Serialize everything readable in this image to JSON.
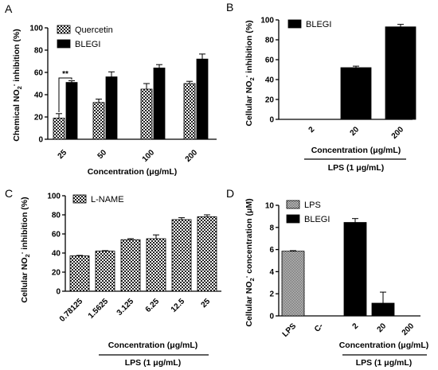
{
  "chart_data": [
    {
      "panel": "A",
      "type": "bar",
      "xlabel": "Concentration (μg/mL)",
      "ylabel": "Chemical NO₂⁻ inhibition (%)",
      "ylim": [
        0,
        100
      ],
      "yticks": [
        0,
        20,
        40,
        60,
        80,
        100
      ],
      "categories": [
        "25",
        "50",
        "100",
        "200"
      ],
      "series": [
        {
          "name": "Quercetin",
          "values": [
            19,
            33,
            45,
            50
          ],
          "errors": [
            4,
            3,
            5,
            2
          ]
        },
        {
          "name": "BLEGI",
          "values": [
            51,
            56,
            64,
            72
          ],
          "errors": [
            1.5,
            4.5,
            3,
            4.5
          ]
        }
      ],
      "annotation": "**",
      "legend_placement": "top-left"
    },
    {
      "panel": "B",
      "type": "bar",
      "xlabel": "Concentration (μg/mL)",
      "group_label": "LPS (1 μg/mL)",
      "ylabel": "Cellular NO₂⁻ inhibition (%)",
      "ylim": [
        0,
        100
      ],
      "yticks": [
        0,
        20,
        40,
        60,
        80,
        100
      ],
      "categories": [
        "2",
        "20",
        "200"
      ],
      "series": [
        {
          "name": "BLEGI",
          "values": [
            0,
            52,
            93
          ],
          "errors": [
            0,
            1.5,
            2.5
          ]
        }
      ],
      "legend_placement": "top-left"
    },
    {
      "panel": "C",
      "type": "bar",
      "xlabel": "Concentration (μg/mL)",
      "group_label": "LPS (1 μg/mL)",
      "ylabel": "Cellular NO₂⁻ inhibition (%)",
      "ylim": [
        0,
        100
      ],
      "yticks": [
        0,
        20,
        40,
        60,
        80,
        100
      ],
      "categories": [
        "0.78125",
        "1.5625",
        "3.125",
        "6.25",
        "12.5",
        "25"
      ],
      "series": [
        {
          "name": "L-NAME",
          "values": [
            37,
            42,
            54,
            55,
            75,
            78
          ],
          "errors": [
            0.5,
            0.5,
            1,
            4,
            2,
            2
          ]
        }
      ],
      "legend_placement": "top-left"
    },
    {
      "panel": "D",
      "type": "bar",
      "xlabel": "Concentration (μg/mL)",
      "group_label": "LPS (1 μg/mL)",
      "ylabel": "Cellular NO₂⁻ concentration (μM)",
      "ylim": [
        0,
        10
      ],
      "yticks": [
        0,
        2,
        4,
        6,
        8,
        10
      ],
      "categories": [
        "LPS",
        "C-",
        "2",
        "20",
        "200"
      ],
      "series": [
        {
          "name": "LPS",
          "values": [
            5.85,
            null,
            null,
            null,
            null
          ],
          "errors": [
            0.05,
            null,
            null,
            null,
            null
          ]
        },
        {
          "name": "BLEGI",
          "values": [
            null,
            null,
            8.45,
            1.15,
            0
          ],
          "errors": [
            null,
            null,
            0.35,
            1.0,
            0
          ]
        }
      ],
      "legend_placement": "top-left"
    }
  ]
}
